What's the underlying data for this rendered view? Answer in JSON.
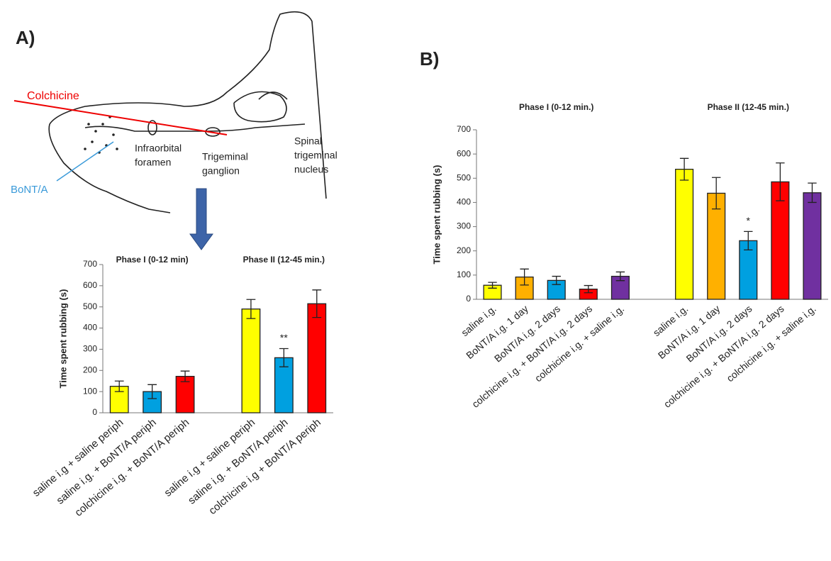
{
  "panel_labels": [
    "A)",
    "B)"
  ],
  "diagram": {
    "colchicine": "Colchicine",
    "bont": "BoNT/A",
    "infraorbital": [
      "Infraorbital",
      "foramen"
    ],
    "ganglion": [
      "Trigeminal",
      "ganglion"
    ],
    "nucleus": [
      "Spinal",
      "trigeminal",
      "nucleus"
    ]
  },
  "chart_data": [
    {
      "type": "bar",
      "ylabel": "Time spent rubbing (s)",
      "group_labels": [
        "Phase I (0-12 min)",
        "Phase II (12-45 min.)"
      ],
      "categories": [
        "saline i.g + saline periph",
        "saline i.g. + BoNT/A periph",
        "colchicine i.g. + BoNT/A periph",
        null,
        "saline i.g + saline periph",
        "saline i.g. + BoNT/A  periph",
        "colchicine i.g + BoNT/A periph"
      ],
      "values": [
        125,
        100,
        172,
        null,
        490,
        260,
        515
      ],
      "errors": [
        25,
        33,
        25,
        null,
        45,
        43,
        65
      ],
      "significance": [
        null,
        null,
        null,
        null,
        null,
        "**",
        null
      ],
      "colors": [
        "#ffff00",
        "#00a0e0",
        "#ff0000",
        null,
        "#ffff00",
        "#00a0e0",
        "#ff0000"
      ],
      "ylim": [
        0,
        700
      ],
      "yticks": [
        0,
        100,
        200,
        300,
        400,
        500,
        600,
        700
      ]
    },
    {
      "type": "bar",
      "ylabel": "Time spent rubbing (s)",
      "group_labels": [
        "Phase I (0-12 min.)",
        "Phase II (12-45 min.)"
      ],
      "categories": [
        "saline i.g.",
        "BoNT/A i.g. 1 day",
        "BoNT/A i.g. 2 days",
        "colchicine i.g. + BoNT/A i.g. 2 days",
        "colchicine i.g. + saline i.g.",
        null,
        "saline i.g.",
        "BoNT/A i.g. 1 day",
        "BoNT/A i.g. 2 days",
        "colchicine i.g. + BoNT/A i.g. 2 days",
        "colchicine i.g. + saline i.g."
      ],
      "values": [
        58,
        92,
        78,
        42,
        95,
        null,
        537,
        438,
        242,
        485,
        440
      ],
      "errors": [
        12,
        33,
        17,
        15,
        18,
        null,
        45,
        65,
        38,
        78,
        40
      ],
      "significance": [
        null,
        null,
        null,
        null,
        null,
        null,
        null,
        null,
        "*",
        null,
        null
      ],
      "colors": [
        "#ffff00",
        "#ffb000",
        "#00a0e0",
        "#ff0000",
        "#7030a0",
        null,
        "#ffff00",
        "#ffb000",
        "#00a0e0",
        "#ff0000",
        "#7030a0"
      ],
      "ylim": [
        0,
        700
      ],
      "yticks": [
        0,
        100,
        200,
        300,
        400,
        500,
        600,
        700
      ]
    }
  ]
}
